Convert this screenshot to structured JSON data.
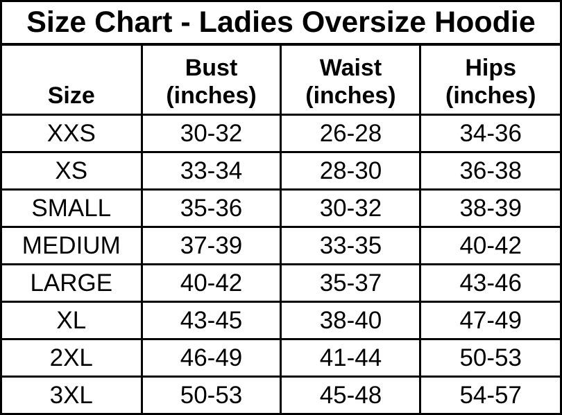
{
  "colors": {
    "background": "#ffffff",
    "border": "#000000",
    "text": "#000000"
  },
  "chart_data": {
    "type": "table",
    "title": "Size Chart - Ladies Oversize Hoodie",
    "columns": [
      {
        "name": "Size",
        "unit": ""
      },
      {
        "name": "Bust",
        "unit": "(inches)"
      },
      {
        "name": "Waist",
        "unit": "(inches)"
      },
      {
        "name": "Hips",
        "unit": "(inches)"
      }
    ],
    "rows": [
      [
        "XXS",
        "30-32",
        "26-28",
        "34-36"
      ],
      [
        "XS",
        "33-34",
        "28-30",
        "36-38"
      ],
      [
        "SMALL",
        "35-36",
        "30-32",
        "38-39"
      ],
      [
        "MEDIUM",
        "37-39",
        "33-35",
        "40-42"
      ],
      [
        "LARGE",
        "40-42",
        "35-37",
        "43-46"
      ],
      [
        "XL",
        "43-45",
        "38-40",
        "47-49"
      ],
      [
        "2XL",
        "46-49",
        "41-44",
        "50-53"
      ],
      [
        "3XL",
        "50-53",
        "45-48",
        "54-57"
      ]
    ]
  }
}
